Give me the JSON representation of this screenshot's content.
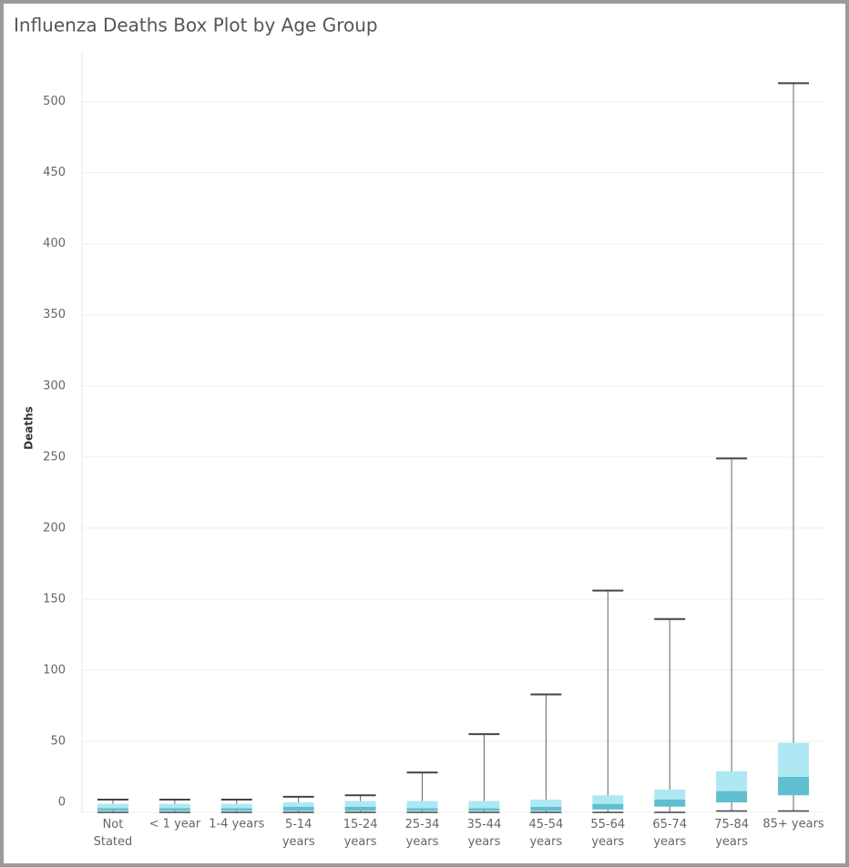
{
  "chart_data": {
    "type": "box",
    "title": "Influenza Deaths Box Plot by Age Group",
    "y_label": "Deaths",
    "categories": [
      "Not Stated",
      "< 1 year",
      "1-4 years",
      "5-14 years",
      "15-24 years",
      "25-34 years",
      "35-44 years",
      "45-54 years",
      "55-64 years",
      "65-74 years",
      "75-84 years",
      "85+ years"
    ],
    "min": [
      0,
      0,
      0,
      0,
      0,
      0,
      0,
      0,
      0,
      0,
      1,
      1
    ],
    "q1": [
      1,
      1,
      1,
      1,
      1,
      1,
      1,
      1,
      2,
      4,
      7,
      12
    ],
    "median": [
      3,
      3,
      3,
      4,
      4,
      3,
      3,
      4,
      6,
      9,
      15,
      25
    ],
    "q3": [
      6,
      6,
      6,
      7,
      8,
      8,
      8,
      9,
      12,
      16,
      29,
      49
    ],
    "max": [
      9,
      9,
      9,
      11,
      12,
      28,
      55,
      83,
      156,
      136,
      249,
      513
    ],
    "upper_color": "#aee8f2",
    "lower_color": "#5fbfcf",
    "ylim": [
      0,
      535
    ],
    "yticks": [
      0,
      50,
      100,
      150,
      200,
      250,
      300,
      350,
      400,
      450,
      500
    ],
    "grid": true
  }
}
